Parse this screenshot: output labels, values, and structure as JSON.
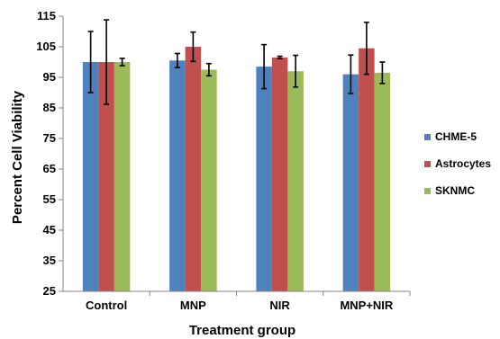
{
  "chart_data": {
    "type": "bar",
    "title": "",
    "xlabel": "Treatment group",
    "ylabel": "Percent Cell Viability",
    "ylim": [
      25,
      115
    ],
    "yticks": [
      25,
      35,
      45,
      55,
      65,
      75,
      85,
      95,
      105,
      115
    ],
    "categories": [
      "Control",
      "MNP",
      "NIR",
      "MNP+NIR"
    ],
    "series": [
      {
        "name": "CHME-5",
        "color": "#4F81BD",
        "values": [
          100,
          100.5,
          98.5,
          96
        ],
        "errors": [
          10,
          2.3,
          7.2,
          6.3
        ]
      },
      {
        "name": "Astrocytes",
        "color": "#C0504D",
        "values": [
          100,
          105,
          101.5,
          104.5
        ],
        "errors": [
          13.8,
          4.8,
          0.4,
          8.5
        ]
      },
      {
        "name": "SKNMC",
        "color": "#9BBB59",
        "values": [
          100,
          97.5,
          97,
          96.5
        ],
        "errors": [
          1.2,
          2.0,
          5.2,
          3.5
        ]
      }
    ],
    "legend_position": "right",
    "grid": false
  }
}
